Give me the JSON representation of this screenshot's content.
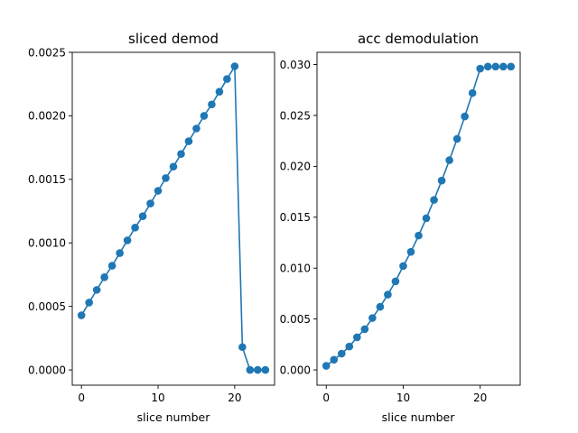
{
  "colors": {
    "series": "#1f77b4",
    "axes": "#000000",
    "background": "#ffffff"
  },
  "chart_data": [
    {
      "type": "line",
      "title": "sliced demod",
      "xlabel": "slice number",
      "ylabel": "",
      "grid": false,
      "markers": "circle",
      "xlim": [
        -1.2,
        25.2
      ],
      "ylim": [
        -0.00012,
        0.0025
      ],
      "xticks": [
        0,
        10,
        20
      ],
      "xtick_labels": [
        "0",
        "10",
        "20"
      ],
      "yticks": [
        0,
        0.0005,
        0.001,
        0.0015,
        0.002,
        0.0025
      ],
      "ytick_labels": [
        "0.0000",
        "0.0005",
        "0.0010",
        "0.0015",
        "0.0020",
        "0.0025"
      ],
      "x": [
        0,
        1,
        2,
        3,
        4,
        5,
        6,
        7,
        8,
        9,
        10,
        11,
        12,
        13,
        14,
        15,
        16,
        17,
        18,
        19,
        20,
        21,
        22,
        23,
        24
      ],
      "y": [
        0.00043,
        0.00053,
        0.00063,
        0.00073,
        0.00082,
        0.00092,
        0.00102,
        0.00112,
        0.00121,
        0.00131,
        0.00141,
        0.00151,
        0.0016,
        0.0017,
        0.0018,
        0.0019,
        0.002,
        0.00209,
        0.00219,
        0.00229,
        0.00239,
        0.00018,
        0.0,
        0.0,
        0.0
      ]
    },
    {
      "type": "line",
      "title": "acc demodulation",
      "xlabel": "slice number",
      "ylabel": "",
      "grid": false,
      "markers": "circle",
      "xlim": [
        -1.2,
        25.2
      ],
      "ylim": [
        -0.0015,
        0.0312
      ],
      "xticks": [
        0,
        10,
        20
      ],
      "xtick_labels": [
        "0",
        "10",
        "20"
      ],
      "yticks": [
        0,
        0.005,
        0.01,
        0.015,
        0.02,
        0.025,
        0.03
      ],
      "ytick_labels": [
        "0.000",
        "0.005",
        "0.010",
        "0.015",
        "0.020",
        "0.025",
        "0.030"
      ],
      "x": [
        0,
        1,
        2,
        3,
        4,
        5,
        6,
        7,
        8,
        9,
        10,
        11,
        12,
        13,
        14,
        15,
        16,
        17,
        18,
        19,
        20,
        21,
        22,
        23,
        24
      ],
      "y": [
        0.0004,
        0.001,
        0.0016,
        0.0023,
        0.0032,
        0.004,
        0.0051,
        0.0062,
        0.0074,
        0.0087,
        0.0102,
        0.0116,
        0.0132,
        0.0149,
        0.0167,
        0.0186,
        0.0206,
        0.0227,
        0.0249,
        0.0272,
        0.0296,
        0.0298,
        0.0298,
        0.0298,
        0.0298
      ]
    }
  ]
}
